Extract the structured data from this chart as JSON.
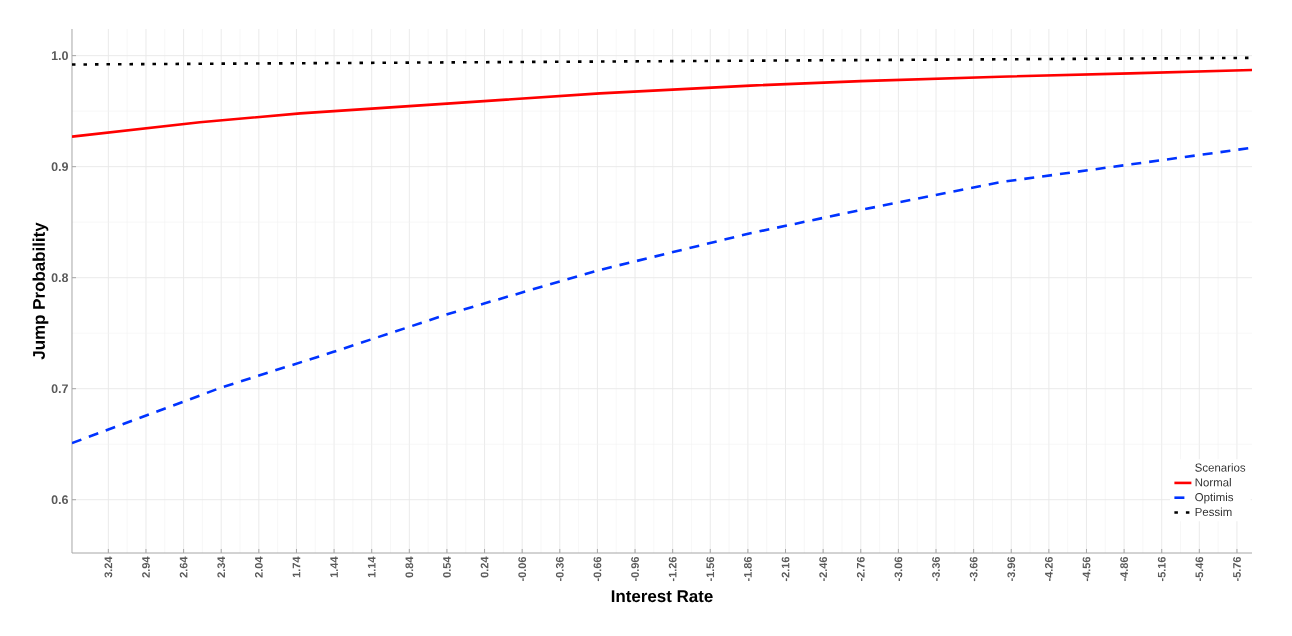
{
  "chart_data": {
    "type": "line",
    "xlabel": "Interest Rate",
    "ylabel": "Jump Probability",
    "legend_title": "Scenarios",
    "series": [
      {
        "name": "Normal",
        "color": "#ff0000",
        "line_style": "solid",
        "x": [
          3.53,
          2.51,
          1.71,
          0.51,
          -0.68,
          -1.88,
          -2.76,
          -3.87,
          -4.91,
          -5.88
        ],
        "values": [
          0.927,
          0.94,
          0.948,
          0.957,
          0.966,
          0.973,
          0.977,
          0.981,
          0.984,
          0.987
        ]
      },
      {
        "name": "Optimis",
        "color": "#0033ff",
        "line_style": "dashed",
        "x": [
          3.53,
          2.34,
          1.45,
          0.51,
          -0.68,
          -1.88,
          -2.76,
          -3.87,
          -4.91,
          -5.88
        ],
        "values": [
          0.651,
          0.701,
          0.733,
          0.768,
          0.807,
          0.84,
          0.861,
          0.886,
          0.902,
          0.917
        ]
      },
      {
        "name": "Pessim",
        "color": "#000000",
        "line_style": "dotted",
        "x": [
          3.53,
          -1.18,
          -5.88
        ],
        "values": [
          0.992,
          0.995,
          0.998
        ]
      }
    ],
    "xlim": [
      3.53,
      -5.88
    ],
    "ylim": [
      0.552,
      1.024
    ],
    "xticks": [
      3.24,
      2.94,
      2.64,
      2.34,
      2.04,
      1.74,
      1.44,
      1.14,
      0.84,
      0.54,
      0.24,
      -0.06,
      -0.36,
      -0.66,
      -0.96,
      -1.26,
      -1.56,
      -1.86,
      -2.16,
      -2.46,
      -2.76,
      -3.06,
      -3.36,
      -3.66,
      -3.96,
      -4.26,
      -4.56,
      -4.86,
      -5.16,
      -5.46,
      -5.76
    ],
    "yticks": [
      0.6,
      0.7,
      0.8,
      0.9,
      {
        "value": 1,
        "label": "1.0"
      }
    ],
    "grid": true,
    "legend": "bottom right",
    "marker": "none"
  }
}
